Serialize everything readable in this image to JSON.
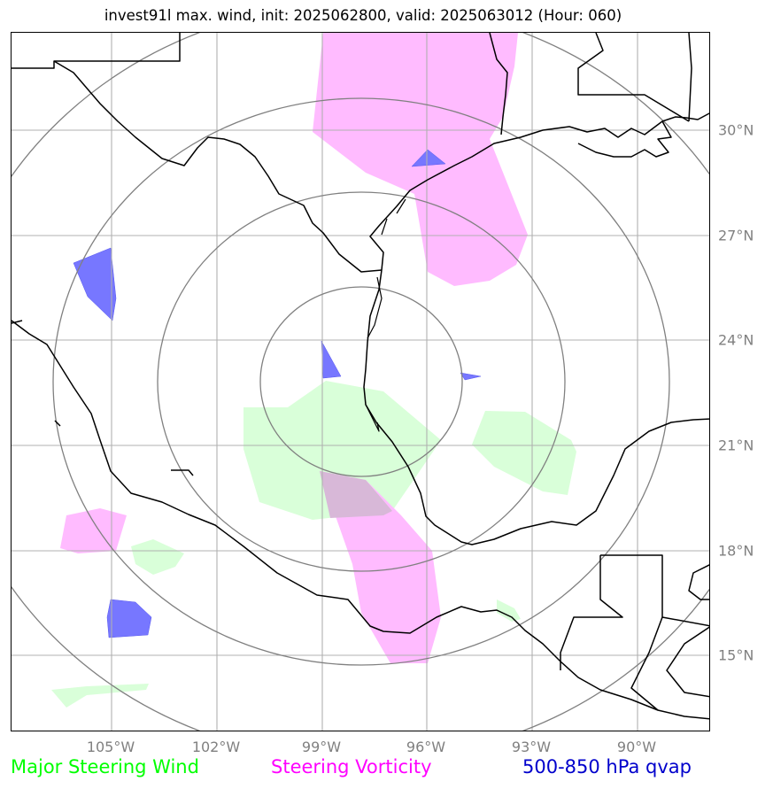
{
  "title": "invest91l max. wind, init: 2025062800, valid: 2025063012 (Hour: 060)",
  "lon_labels": [
    "105°W",
    "102°W",
    "99°W",
    "96°W",
    "93°W",
    "90°W"
  ],
  "lat_labels": [
    "30°N",
    "27°N",
    "24°N",
    "21°N",
    "18°N",
    "15°N"
  ],
  "legend": {
    "wind": "Major Steering Wind",
    "vorticity": "Steering Vorticity",
    "qvap": "500-850 hPa qvap"
  },
  "colors": {
    "wind": "#00ff00",
    "vorticity": "#ff00ff",
    "qvap": "#0000cc",
    "wind_fill": "#d9ffd9",
    "vorticity_fill": "#ffbbff",
    "qvap_fill": "#7777ff",
    "grid": "#b0b0b0",
    "range_rings": "#808080"
  },
  "layers": [
    "range-rings",
    "graticule",
    "coastlines",
    "country-borders"
  ]
}
